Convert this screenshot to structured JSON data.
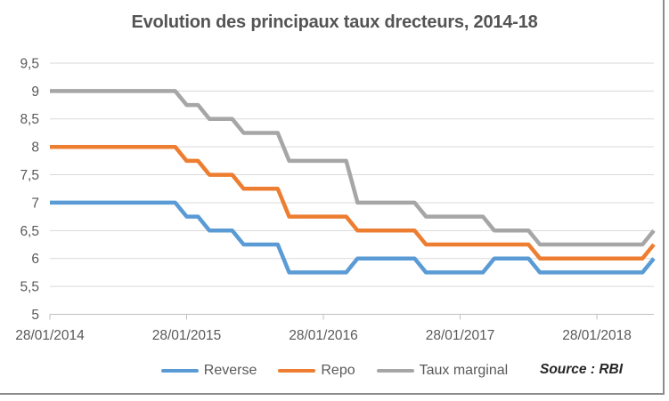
{
  "title": "Evolution des principaux taux drecteurs, 2014-18",
  "source": "Source : RBI",
  "colors": {
    "reverse_line": "#5B9BD5",
    "repo_line": "#ED7D31",
    "marginal_line": "#A6A6A6",
    "gridline": "#D9D9D9",
    "axis_line": "#BFBFBF",
    "axis_text": "#595959",
    "legend_text": "#595959",
    "title_text": "#545454",
    "source_text": "#262626",
    "frame_border": "#8C8C8C",
    "background": "#FFFFFF"
  },
  "legend": [
    {
      "label": "Reverse",
      "color": "#5B9BD5"
    },
    {
      "label": "Repo",
      "color": "#ED7D31"
    },
    {
      "label": "Taux marginal",
      "color": "#A6A6A6"
    }
  ],
  "chart_data": {
    "type": "line",
    "title": "Evolution des principaux taux drecteurs, 2014-18",
    "xlabel": "",
    "ylabel": "",
    "ylim": [
      5,
      9.5
    ],
    "grid": true,
    "legend_position": "bottom",
    "y_tick_values": [
      9.5,
      9,
      8.5,
      8,
      7.5,
      7,
      6.5,
      6,
      5.5,
      5
    ],
    "y_tick_labels": [
      "9,5",
      "9",
      "8,5",
      "8",
      "7,5",
      "7",
      "6,5",
      "6",
      "5,5",
      "5"
    ],
    "x_months": [
      "2014-01",
      "2014-02",
      "2014-03",
      "2014-04",
      "2014-05",
      "2014-06",
      "2014-07",
      "2014-08",
      "2014-09",
      "2014-10",
      "2014-11",
      "2014-12",
      "2015-01",
      "2015-02",
      "2015-03",
      "2015-04",
      "2015-05",
      "2015-06",
      "2015-07",
      "2015-08",
      "2015-09",
      "2015-10",
      "2015-11",
      "2015-12",
      "2016-01",
      "2016-02",
      "2016-03",
      "2016-04",
      "2016-05",
      "2016-06",
      "2016-07",
      "2016-08",
      "2016-09",
      "2016-10",
      "2016-11",
      "2016-12",
      "2017-01",
      "2017-02",
      "2017-03",
      "2017-04",
      "2017-05",
      "2017-06",
      "2017-07",
      "2017-08",
      "2017-09",
      "2017-10",
      "2017-11",
      "2017-12",
      "2018-01",
      "2018-02",
      "2018-03",
      "2018-04",
      "2018-05",
      "2018-06"
    ],
    "x_tick_indices": [
      0,
      12,
      24,
      36,
      48
    ],
    "x_tick_labels": [
      "28/01/2014",
      "28/01/2015",
      "28/01/2016",
      "28/01/2017",
      "28/01/2018"
    ],
    "series": [
      {
        "name": "Reverse",
        "color": "#5B9BD5",
        "values": [
          7,
          7,
          7,
          7,
          7,
          7,
          7,
          7,
          7,
          7,
          7,
          7,
          6.75,
          6.75,
          6.5,
          6.5,
          6.5,
          6.25,
          6.25,
          6.25,
          6.25,
          5.75,
          5.75,
          5.75,
          5.75,
          5.75,
          5.75,
          6,
          6,
          6,
          6,
          6,
          6,
          5.75,
          5.75,
          5.75,
          5.75,
          5.75,
          5.75,
          6,
          6,
          6,
          6,
          5.75,
          5.75,
          5.75,
          5.75,
          5.75,
          5.75,
          5.75,
          5.75,
          5.75,
          5.75,
          6
        ]
      },
      {
        "name": "Repo",
        "color": "#ED7D31",
        "values": [
          8,
          8,
          8,
          8,
          8,
          8,
          8,
          8,
          8,
          8,
          8,
          8,
          7.75,
          7.75,
          7.5,
          7.5,
          7.5,
          7.25,
          7.25,
          7.25,
          7.25,
          6.75,
          6.75,
          6.75,
          6.75,
          6.75,
          6.75,
          6.5,
          6.5,
          6.5,
          6.5,
          6.5,
          6.5,
          6.25,
          6.25,
          6.25,
          6.25,
          6.25,
          6.25,
          6.25,
          6.25,
          6.25,
          6.25,
          6,
          6,
          6,
          6,
          6,
          6,
          6,
          6,
          6,
          6,
          6.25
        ]
      },
      {
        "name": "Taux marginal",
        "color": "#A6A6A6",
        "values": [
          9,
          9,
          9,
          9,
          9,
          9,
          9,
          9,
          9,
          9,
          9,
          9,
          8.75,
          8.75,
          8.5,
          8.5,
          8.5,
          8.25,
          8.25,
          8.25,
          8.25,
          7.75,
          7.75,
          7.75,
          7.75,
          7.75,
          7.75,
          7,
          7,
          7,
          7,
          7,
          7,
          6.75,
          6.75,
          6.75,
          6.75,
          6.75,
          6.75,
          6.5,
          6.5,
          6.5,
          6.5,
          6.25,
          6.25,
          6.25,
          6.25,
          6.25,
          6.25,
          6.25,
          6.25,
          6.25,
          6.25,
          6.5
        ]
      }
    ]
  }
}
